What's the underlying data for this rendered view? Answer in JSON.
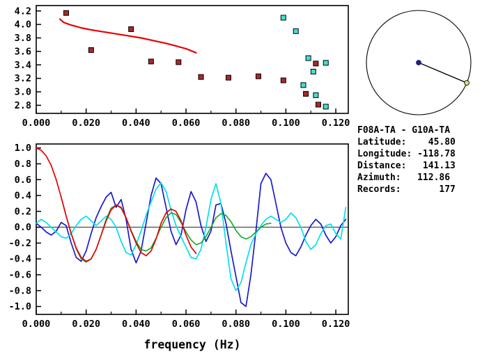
{
  "info": {
    "lines": [
      "F08A-TA - G10A-TA",
      "Latitude:    45.80",
      "Longitude: -118.78",
      "Distance:   141.13",
      "Azimuth:   112.86",
      "Records:       177"
    ]
  },
  "azimuth_diagram": {
    "azimuth_deg": 112.86,
    "circle_color": "#000000",
    "center_dot_color": "#202080",
    "end_dot_color": "#e0e070",
    "line_color": "#000000"
  },
  "chart_data": [
    {
      "id": "dispersion",
      "type": "scatter",
      "title": "",
      "xlabel": "",
      "ylabel": "",
      "grid": false,
      "legend": "none",
      "xlim": [
        0,
        0.125
      ],
      "ylim": [
        2.68,
        4.28
      ],
      "xticks": {
        "values": [
          0,
          0.02,
          0.04,
          0.06,
          0.08,
          0.1,
          0.12
        ],
        "labels": [
          "0.000",
          "0.020",
          "0.040",
          "0.060",
          "0.080",
          "0.100",
          "0.120"
        ]
      },
      "yticks": {
        "values": [
          4.2,
          4.0,
          3.8,
          3.6,
          3.4,
          3.2,
          3.0,
          2.8
        ],
        "labels": [
          "4.2",
          "4.0",
          "3.8",
          "3.6",
          "3.4",
          "3.2",
          "3.0",
          "2.8"
        ]
      },
      "series": [
        {
          "name": "dispersion-curve",
          "color": "#e60000",
          "width": 2.2,
          "points": [
            [
              0.0095,
              4.08
            ],
            [
              0.011,
              4.03
            ],
            [
              0.014,
              3.99
            ],
            [
              0.018,
              3.95
            ],
            [
              0.022,
              3.92
            ],
            [
              0.027,
              3.89
            ],
            [
              0.032,
              3.86
            ],
            [
              0.037,
              3.83
            ],
            [
              0.042,
              3.8
            ],
            [
              0.047,
              3.76
            ],
            [
              0.052,
              3.72
            ],
            [
              0.056,
              3.68
            ],
            [
              0.06,
              3.64
            ],
            [
              0.064,
              3.58
            ]
          ]
        }
      ],
      "scatter": [
        {
          "name": "red-square-pick",
          "color": "#aa2828",
          "points": [
            [
              0.012,
              4.17
            ],
            [
              0.022,
              3.62
            ],
            [
              0.038,
              3.93
            ],
            [
              0.046,
              3.45
            ],
            [
              0.057,
              3.44
            ],
            [
              0.066,
              3.22
            ],
            [
              0.077,
              3.21
            ],
            [
              0.089,
              3.23
            ],
            [
              0.099,
              3.17
            ],
            [
              0.108,
              2.97
            ],
            [
              0.112,
              3.42
            ],
            [
              0.113,
              2.81
            ]
          ]
        },
        {
          "name": "cyan-square-pick",
          "color": "#40e0d0",
          "points": [
            [
              0.099,
              4.1
            ],
            [
              0.104,
              3.9
            ],
            [
              0.109,
              3.5
            ],
            [
              0.116,
              3.43
            ],
            [
              0.111,
              3.3
            ],
            [
              0.107,
              3.1
            ],
            [
              0.112,
              2.95
            ],
            [
              0.116,
              2.78
            ]
          ]
        }
      ]
    },
    {
      "id": "waveforms",
      "type": "line",
      "title": "",
      "xlabel": "frequency (Hz)",
      "ylabel": "",
      "grid": false,
      "legend": "none",
      "zero_line": true,
      "xlim": [
        0,
        0.125
      ],
      "ylim": [
        -1.1,
        1.05
      ],
      "xticks": {
        "values": [
          0,
          0.02,
          0.04,
          0.06,
          0.08,
          0.1,
          0.12
        ],
        "labels": [
          "0.000",
          "0.020",
          "0.040",
          "0.060",
          "0.080",
          "0.100",
          "0.120"
        ]
      },
      "yticks": {
        "values": [
          1.0,
          0.8,
          0.6,
          0.4,
          0.2,
          0.0,
          -0.2,
          -0.4,
          -0.6,
          -0.8,
          -1.0
        ],
        "labels": [
          "1.0",
          "0.8",
          "0.6",
          "0.4",
          "0.2",
          "0.0",
          "-0.2",
          "-0.4",
          "-0.6",
          "-0.8",
          "-1.0"
        ]
      },
      "series": [
        {
          "name": "blue",
          "color": "#1a1acd",
          "width": 1.7,
          "x0": 0,
          "dx": 0.002,
          "y": [
            0.05,
            0.0,
            -0.06,
            -0.1,
            -0.05,
            0.06,
            0.02,
            -0.2,
            -0.38,
            -0.43,
            -0.3,
            -0.08,
            0.12,
            0.26,
            0.38,
            0.44,
            0.25,
            0.35,
            0.1,
            -0.28,
            -0.45,
            -0.3,
            0.05,
            0.4,
            0.62,
            0.55,
            0.25,
            -0.05,
            -0.22,
            -0.1,
            0.22,
            0.45,
            0.32,
            0.02,
            -0.18,
            -0.05,
            0.28,
            0.3,
            0.05,
            -0.3,
            -0.62,
            -0.95,
            -1.0,
            -0.6,
            -0.05,
            0.55,
            0.68,
            0.6,
            0.3,
            0.0,
            -0.2,
            -0.32,
            -0.36,
            -0.25,
            -0.1,
            0.02,
            0.1,
            0.04,
            -0.1,
            -0.2,
            -0.12,
            0.02,
            0.1
          ]
        },
        {
          "name": "cyan",
          "color": "#00e0e8",
          "width": 1.7,
          "x0": 0,
          "dx": 0.002,
          "y": [
            0.05,
            0.1,
            0.06,
            0.0,
            -0.06,
            -0.12,
            -0.14,
            -0.08,
            0.02,
            0.1,
            0.14,
            0.08,
            0.02,
            0.08,
            0.14,
            0.1,
            0.0,
            -0.18,
            -0.32,
            -0.35,
            -0.22,
            -0.05,
            0.15,
            0.32,
            0.48,
            0.56,
            0.45,
            0.22,
            0.02,
            -0.12,
            -0.25,
            -0.38,
            -0.4,
            -0.28,
            0.0,
            0.35,
            0.55,
            0.3,
            -0.2,
            -0.65,
            -0.8,
            -0.7,
            -0.45,
            -0.22,
            -0.08,
            0.02,
            0.1,
            0.14,
            0.1,
            0.06,
            0.1,
            0.18,
            0.12,
            0.0,
            -0.18,
            -0.28,
            -0.22,
            -0.08,
            0.02,
            0.04,
            -0.08,
            -0.15,
            0.25
          ]
        },
        {
          "name": "green",
          "color": "#10a828",
          "width": 1.6,
          "x0": 0.01,
          "dx": 0.002,
          "y": [
            0.38,
            0.14,
            -0.08,
            -0.27,
            -0.4,
            -0.44,
            -0.4,
            -0.28,
            -0.1,
            0.1,
            0.24,
            0.28,
            0.24,
            0.12,
            -0.04,
            -0.18,
            -0.28,
            -0.3,
            -0.26,
            -0.14,
            0.0,
            0.12,
            0.18,
            0.16,
            0.06,
            -0.06,
            -0.16,
            -0.22,
            -0.2,
            -0.12,
            0.0,
            0.12,
            0.17,
            0.15,
            0.07,
            -0.04,
            -0.12,
            -0.15,
            -0.12,
            -0.06,
            0.0,
            0.04,
            0.05
          ]
        },
        {
          "name": "red",
          "color": "#e60000",
          "width": 1.7,
          "x0": 0,
          "dx": 0.002,
          "y": [
            1.0,
            0.97,
            0.9,
            0.78,
            0.6,
            0.38,
            0.14,
            -0.08,
            -0.26,
            -0.38,
            -0.43,
            -0.4,
            -0.28,
            -0.1,
            0.08,
            0.22,
            0.28,
            0.25,
            0.12,
            -0.05,
            -0.2,
            -0.32,
            -0.36,
            -0.3,
            -0.15,
            0.05,
            0.18,
            0.23,
            0.2,
            0.08,
            -0.1,
            -0.25,
            -0.33
          ]
        }
      ]
    }
  ]
}
